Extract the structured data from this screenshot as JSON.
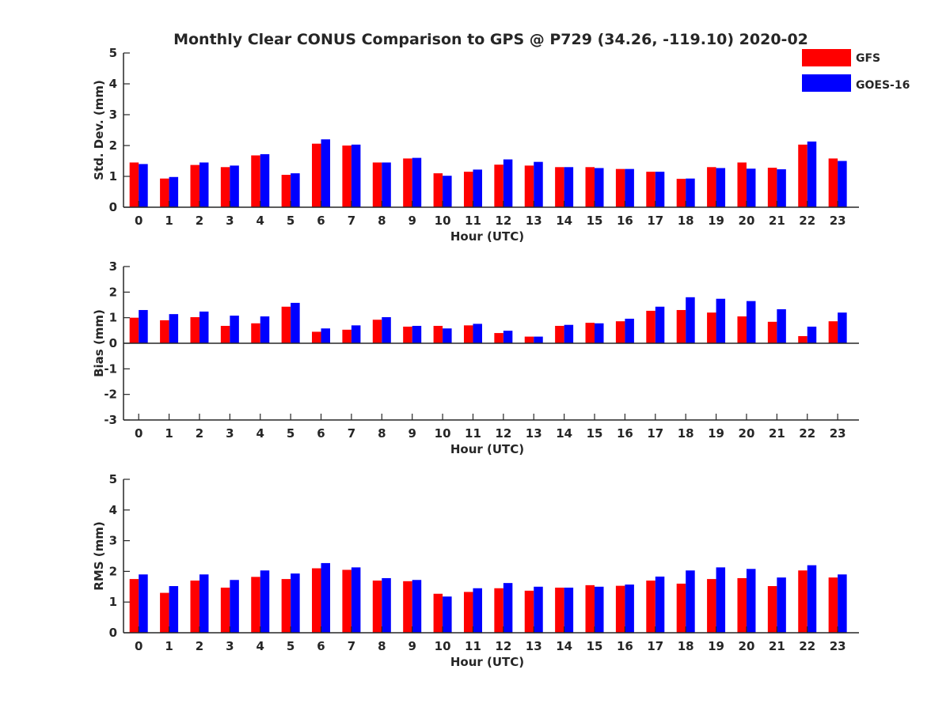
{
  "page": {
    "title": "Monthly Clear CONUS Comparison to GPS @ P729 (34.26, -119.10) 2020-02"
  },
  "legend": {
    "position": "top-right",
    "entries": [
      {
        "label": "GFS",
        "color": "#ff0000"
      },
      {
        "label": "GOES-16",
        "color": "#0000ff"
      }
    ]
  },
  "chart_data": [
    {
      "type": "bar",
      "xlabel": "Hour (UTC)",
      "ylabel": "Std. Dev. (mm)",
      "ylim": [
        0,
        5
      ],
      "yticks": [
        0,
        1,
        2,
        3,
        4,
        5
      ],
      "categories": [
        "0",
        "1",
        "2",
        "3",
        "4",
        "5",
        "6",
        "7",
        "8",
        "9",
        "10",
        "11",
        "12",
        "13",
        "14",
        "15",
        "16",
        "17",
        "18",
        "19",
        "20",
        "21",
        "22",
        "23"
      ],
      "series": [
        {
          "name": "GFS",
          "color": "#ff0000",
          "values": [
            1.45,
            0.93,
            1.37,
            1.3,
            1.68,
            1.05,
            2.06,
            2.0,
            1.45,
            1.58,
            1.1,
            1.15,
            1.38,
            1.35,
            1.3,
            1.3,
            1.24,
            1.15,
            0.92,
            1.3,
            1.45,
            1.28,
            2.03,
            1.58
          ]
        },
        {
          "name": "GOES-16",
          "color": "#0000ff",
          "values": [
            1.4,
            0.98,
            1.45,
            1.35,
            1.72,
            1.1,
            2.2,
            2.03,
            1.45,
            1.6,
            1.02,
            1.22,
            1.55,
            1.47,
            1.3,
            1.27,
            1.24,
            1.15,
            0.93,
            1.27,
            1.25,
            1.23,
            2.13,
            1.5
          ]
        }
      ]
    },
    {
      "type": "bar",
      "xlabel": "Hour (UTC)",
      "ylabel": "Bias (mm)",
      "ylim": [
        -3,
        3
      ],
      "yticks": [
        -3,
        -2,
        -1,
        0,
        1,
        2,
        3
      ],
      "categories": [
        "0",
        "1",
        "2",
        "3",
        "4",
        "5",
        "6",
        "7",
        "8",
        "9",
        "10",
        "11",
        "12",
        "13",
        "14",
        "15",
        "16",
        "17",
        "18",
        "19",
        "20",
        "21",
        "22",
        "23"
      ],
      "series": [
        {
          "name": "GFS",
          "color": "#ff0000",
          "values": [
            1.0,
            0.9,
            1.02,
            0.68,
            0.78,
            1.43,
            0.45,
            0.53,
            0.92,
            0.65,
            0.68,
            0.7,
            0.4,
            0.26,
            0.68,
            0.8,
            0.86,
            1.27,
            1.3,
            1.2,
            1.05,
            0.84,
            0.28,
            0.86
          ]
        },
        {
          "name": "GOES-16",
          "color": "#0000ff",
          "values": [
            1.3,
            1.14,
            1.24,
            1.08,
            1.05,
            1.58,
            0.58,
            0.7,
            1.02,
            0.68,
            0.58,
            0.76,
            0.49,
            0.26,
            0.72,
            0.78,
            0.96,
            1.43,
            1.8,
            1.74,
            1.65,
            1.33,
            0.65,
            1.2
          ]
        }
      ]
    },
    {
      "type": "bar",
      "xlabel": "Hour (UTC)",
      "ylabel": "RMS (mm)",
      "ylim": [
        0,
        5
      ],
      "yticks": [
        0,
        1,
        2,
        3,
        4,
        5
      ],
      "categories": [
        "0",
        "1",
        "2",
        "3",
        "4",
        "5",
        "6",
        "7",
        "8",
        "9",
        "10",
        "11",
        "12",
        "13",
        "14",
        "15",
        "16",
        "17",
        "18",
        "19",
        "20",
        "21",
        "22",
        "23"
      ],
      "series": [
        {
          "name": "GFS",
          "color": "#ff0000",
          "values": [
            1.75,
            1.3,
            1.7,
            1.47,
            1.82,
            1.75,
            2.1,
            2.05,
            1.7,
            1.68,
            1.27,
            1.33,
            1.45,
            1.37,
            1.47,
            1.55,
            1.53,
            1.7,
            1.6,
            1.75,
            1.78,
            1.52,
            2.03,
            1.8
          ]
        },
        {
          "name": "GOES-16",
          "color": "#0000ff",
          "values": [
            1.9,
            1.52,
            1.9,
            1.72,
            2.03,
            1.93,
            2.27,
            2.13,
            1.78,
            1.72,
            1.18,
            1.45,
            1.62,
            1.5,
            1.47,
            1.5,
            1.57,
            1.83,
            2.03,
            2.13,
            2.08,
            1.8,
            2.2,
            1.9
          ]
        }
      ]
    }
  ]
}
